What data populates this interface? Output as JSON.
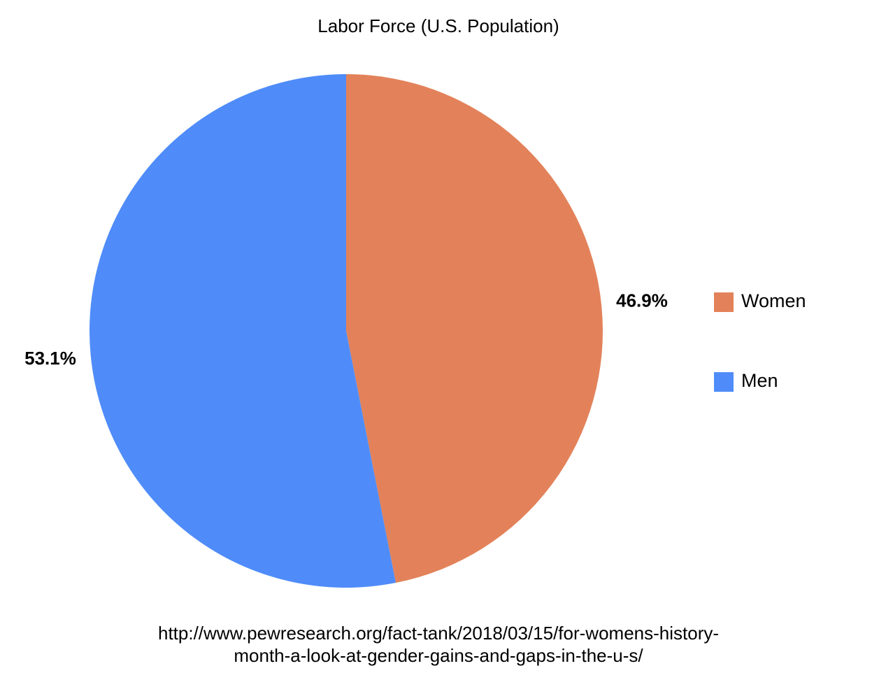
{
  "chart_data": {
    "type": "pie",
    "title": "Labor Force (U.S. Population)",
    "categories": [
      "Women",
      "Men"
    ],
    "values": [
      46.9,
      53.1
    ],
    "value_labels": [
      "46.9%",
      "53.1%"
    ],
    "colors": [
      "#e3825a",
      "#4f8cf9"
    ],
    "legend": "right",
    "source": [
      "http://www.pewresearch.org/fact-tank/2018/03/15/for-womens-history-",
      "month-a-look-at-gender-gains-and-gaps-in-the-u-s/"
    ]
  }
}
